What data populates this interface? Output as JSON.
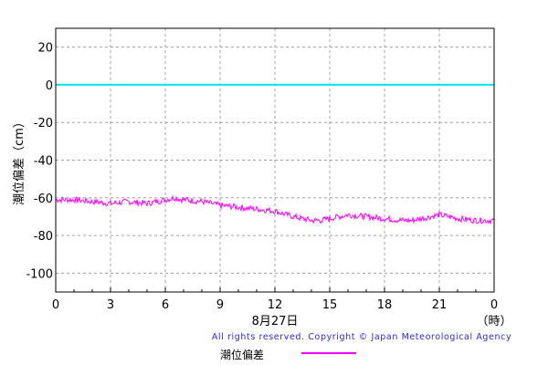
{
  "chart_data": {
    "type": "line",
    "title": "",
    "ylabel": "潮位偏差（cm）",
    "xlabel": "8月27日",
    "x_unit_label": "（時）",
    "ylim": [
      -110,
      30
    ],
    "xlim": [
      0,
      24
    ],
    "yticks": [
      "20",
      "0",
      "-20",
      "-40",
      "-60",
      "-80",
      "-100"
    ],
    "xticks": [
      "0",
      "3",
      "6",
      "9",
      "12",
      "15",
      "18",
      "21",
      "0"
    ],
    "grid": true,
    "reference_line": {
      "y": 0,
      "color": "#00e5ff"
    },
    "series": [
      {
        "name": "潮位偏差",
        "color": "#ff00ff",
        "x": [
          0,
          1,
          2,
          3,
          4,
          5,
          6,
          6.5,
          7,
          8,
          9,
          10,
          11,
          12,
          13,
          14,
          14.5,
          15,
          16,
          17,
          18,
          19,
          19.5,
          20,
          21,
          22,
          23,
          24
        ],
        "y": [
          -61,
          -61,
          -62,
          -63,
          -62,
          -63,
          -61,
          -60,
          -61,
          -62,
          -64,
          -65,
          -66,
          -67,
          -70,
          -72,
          -72,
          -71,
          -69,
          -70,
          -71,
          -72,
          -72,
          -71,
          -69,
          -71,
          -72,
          -72
        ]
      }
    ]
  },
  "copyright": "All rights reserved. Copyright © Japan Meteorological Agency",
  "legend": {
    "label": "潮位偏差",
    "color": "#ff00ff"
  }
}
